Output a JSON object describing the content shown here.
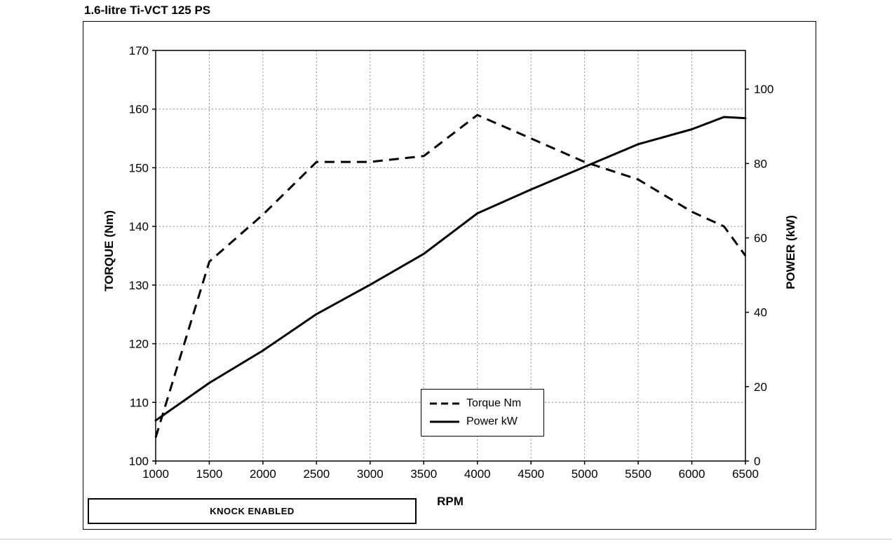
{
  "title": "1.6-litre Ti-VCT 125 PS",
  "colors": {
    "line": "#000000",
    "grid": "#8a8a8a",
    "axis": "#000000",
    "background": "#ffffff"
  },
  "knock_box": {
    "label": "KNOCK ENABLED"
  },
  "chart_data": {
    "type": "line",
    "title": "1.6-litre Ti-VCT 125 PS",
    "xlabel": "RPM",
    "ylabel_left": "TORQUE (Nm)",
    "ylabel_right": "POWER (kW)",
    "xlim": [
      1000,
      6500
    ],
    "x_ticks": [
      1000,
      1500,
      2000,
      2500,
      3000,
      3500,
      4000,
      4500,
      5000,
      5500,
      6000,
      6500
    ],
    "ylim_left": [
      100,
      170
    ],
    "y_ticks_left": [
      100,
      110,
      120,
      130,
      140,
      150,
      160,
      170
    ],
    "ylim_right": [
      0,
      110.4
    ],
    "y_ticks_right": [
      0,
      20,
      40,
      60,
      80,
      100
    ],
    "grid": true,
    "legend_position": "inside-bottom-center",
    "series": [
      {
        "name": "Torque Nm",
        "axis": "left",
        "style": "dashed",
        "x": [
          1000,
          1500,
          2000,
          2500,
          3000,
          3500,
          4000,
          4500,
          5000,
          5500,
          6000,
          6300,
          6500
        ],
        "values": [
          104,
          134,
          142,
          151,
          151,
          152,
          159,
          155,
          151,
          148,
          142.5,
          140,
          135
        ]
      },
      {
        "name": "Power kW",
        "axis": "right",
        "style": "solid",
        "x": [
          1000,
          1500,
          2000,
          2500,
          3000,
          3500,
          4000,
          4500,
          5000,
          5500,
          6000,
          6300,
          6500
        ],
        "values": [
          10.9,
          21.0,
          29.7,
          39.5,
          47.4,
          55.7,
          66.6,
          73.0,
          79.1,
          85.2,
          89.2,
          92.5,
          92.2
        ]
      }
    ]
  }
}
